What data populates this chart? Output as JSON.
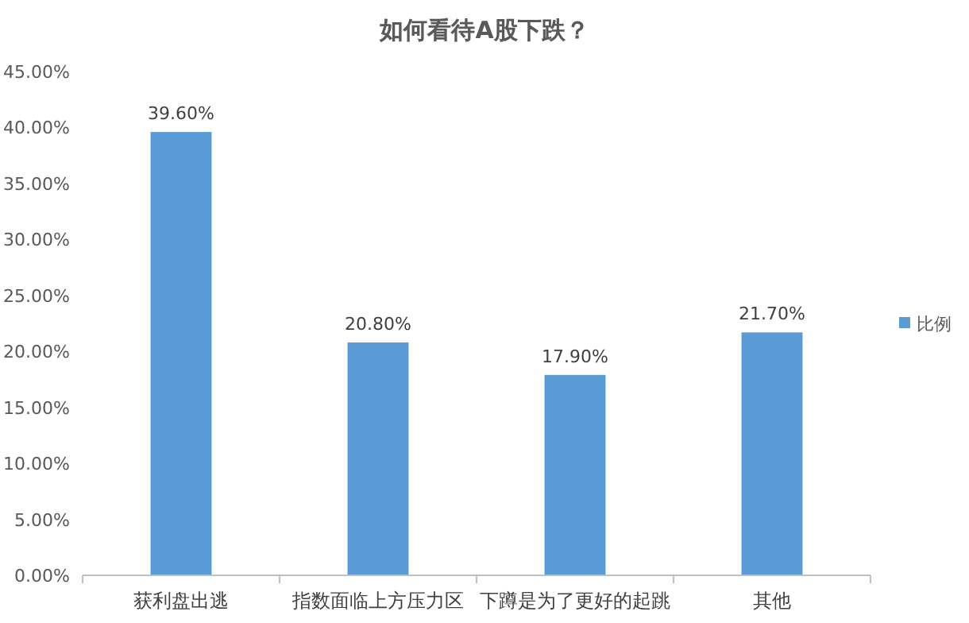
{
  "chart_data": {
    "type": "bar",
    "title": "如何看待A股下跌？",
    "categories": [
      "获利盘出逃",
      "指数面临上方压力区",
      "下蹲是为了更好的起跳",
      "其他"
    ],
    "series": [
      {
        "name": "比例",
        "color": "#5b9bd5",
        "values": [
          39.6,
          20.8,
          17.9,
          21.7
        ],
        "value_labels": [
          "39.60%",
          "20.80%",
          "17.90%",
          "21.70%"
        ]
      }
    ],
    "ylim": [
      0,
      45
    ],
    "yticks": [
      {
        "value": 0,
        "label": "0.00%"
      },
      {
        "value": 5,
        "label": "5.00%"
      },
      {
        "value": 10,
        "label": "10.00%"
      },
      {
        "value": 15,
        "label": "15.00%"
      },
      {
        "value": 20,
        "label": "20.00%"
      },
      {
        "value": 25,
        "label": "25.00%"
      },
      {
        "value": 30,
        "label": "30.00%"
      },
      {
        "value": 35,
        "label": "35.00%"
      },
      {
        "value": 40,
        "label": "40.00%"
      },
      {
        "value": 45,
        "label": "45.00%"
      }
    ],
    "grid": false,
    "legend": "right"
  }
}
